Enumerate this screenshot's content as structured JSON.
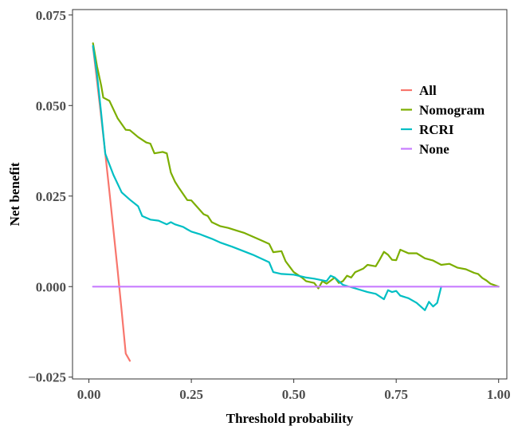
{
  "chart_data": {
    "type": "line",
    "title": "",
    "xlabel": "Threshold probability",
    "ylabel": "Net benefit",
    "xlim": [
      -0.04,
      1.02
    ],
    "ylim": [
      -0.0255,
      0.0765
    ],
    "xticks": [
      0,
      0.25,
      0.5,
      0.75,
      1
    ],
    "xtick_labels": [
      "0.00",
      "0.25",
      "0.50",
      "0.75",
      "1.00"
    ],
    "yticks": [
      -0.025,
      0,
      0.025,
      0.05,
      0.075
    ],
    "ytick_labels": [
      "−0.025",
      "0.000",
      "0.025",
      "0.050",
      "0.075"
    ],
    "grid": false,
    "legend_position": "right",
    "series": [
      {
        "name": "All",
        "color": "#F8766D",
        "x": [
          0.01,
          0.02,
          0.03,
          0.04,
          0.05,
          0.06,
          0.07,
          0.08,
          0.09,
          0.1
        ],
        "y": [
          0.0662,
          0.0567,
          0.0468,
          0.0368,
          0.0262,
          0.0155,
          0.0045,
          -0.0068,
          -0.0185,
          -0.0205
        ]
      },
      {
        "name": "Nomogram",
        "color": "#7CAE00",
        "x": [
          0.01,
          0.02,
          0.03,
          0.035,
          0.05,
          0.07,
          0.09,
          0.1,
          0.12,
          0.14,
          0.15,
          0.16,
          0.18,
          0.19,
          0.2,
          0.21,
          0.22,
          0.24,
          0.25,
          0.28,
          0.29,
          0.3,
          0.32,
          0.34,
          0.36,
          0.38,
          0.4,
          0.42,
          0.44,
          0.45,
          0.47,
          0.48,
          0.49,
          0.5,
          0.52,
          0.53,
          0.55,
          0.56,
          0.57,
          0.58,
          0.6,
          0.61,
          0.62,
          0.63,
          0.64,
          0.65,
          0.67,
          0.68,
          0.7,
          0.71,
          0.72,
          0.73,
          0.74,
          0.75,
          0.76,
          0.78,
          0.8,
          0.82,
          0.84,
          0.86,
          0.88,
          0.9,
          0.92,
          0.94,
          0.95,
          0.96,
          0.97,
          0.98,
          1.0
        ],
        "y": [
          0.0672,
          0.0608,
          0.0555,
          0.0522,
          0.0513,
          0.0465,
          0.0433,
          0.0432,
          0.0413,
          0.0398,
          0.0395,
          0.0368,
          0.0372,
          0.0368,
          0.0315,
          0.029,
          0.0272,
          0.0239,
          0.0238,
          0.02,
          0.0195,
          0.0178,
          0.0167,
          0.0162,
          0.0155,
          0.0148,
          0.0138,
          0.0128,
          0.0118,
          0.0095,
          0.0098,
          0.007,
          0.0055,
          0.004,
          0.0025,
          0.0015,
          0.001,
          -0.0005,
          0.0015,
          0.0008,
          0.0025,
          0.001,
          0.0015,
          0.003,
          0.0025,
          0.004,
          0.005,
          0.006,
          0.0056,
          0.0075,
          0.0096,
          0.0088,
          0.0074,
          0.0073,
          0.0102,
          0.0092,
          0.0092,
          0.0078,
          0.0072,
          0.006,
          0.0063,
          0.0052,
          0.0048,
          0.0038,
          0.0035,
          0.0024,
          0.0017,
          0.0008,
          0.0
        ]
      },
      {
        "name": "RCRI",
        "color": "#00BFC4",
        "x": [
          0.01,
          0.02,
          0.03,
          0.04,
          0.06,
          0.08,
          0.1,
          0.12,
          0.13,
          0.15,
          0.17,
          0.19,
          0.2,
          0.21,
          0.23,
          0.24,
          0.25,
          0.27,
          0.3,
          0.32,
          0.35,
          0.4,
          0.44,
          0.45,
          0.47,
          0.5,
          0.53,
          0.55,
          0.58,
          0.59,
          0.6,
          0.62,
          0.65,
          0.68,
          0.7,
          0.72,
          0.73,
          0.74,
          0.75,
          0.76,
          0.78,
          0.8,
          0.82,
          0.83,
          0.84,
          0.85,
          0.86
        ],
        "y": [
          0.0665,
          0.0585,
          0.0478,
          0.0367,
          0.0308,
          0.026,
          0.024,
          0.0222,
          0.0195,
          0.0185,
          0.0182,
          0.0172,
          0.0178,
          0.0172,
          0.0165,
          0.0158,
          0.0152,
          0.0145,
          0.0132,
          0.0122,
          0.011,
          0.0088,
          0.0067,
          0.004,
          0.0035,
          0.0033,
          0.0025,
          0.0022,
          0.0015,
          0.003,
          0.0025,
          0.0005,
          -0.0005,
          -0.0015,
          -0.002,
          -0.0035,
          -0.001,
          -0.0015,
          -0.0012,
          -0.0025,
          -0.0032,
          -0.0045,
          -0.0065,
          -0.0042,
          -0.0055,
          -0.0045,
          0.0
        ]
      },
      {
        "name": "None",
        "color": "#C77CFF",
        "x": [
          0.01,
          1.0
        ],
        "y": [
          0.0,
          0.0
        ]
      }
    ]
  }
}
